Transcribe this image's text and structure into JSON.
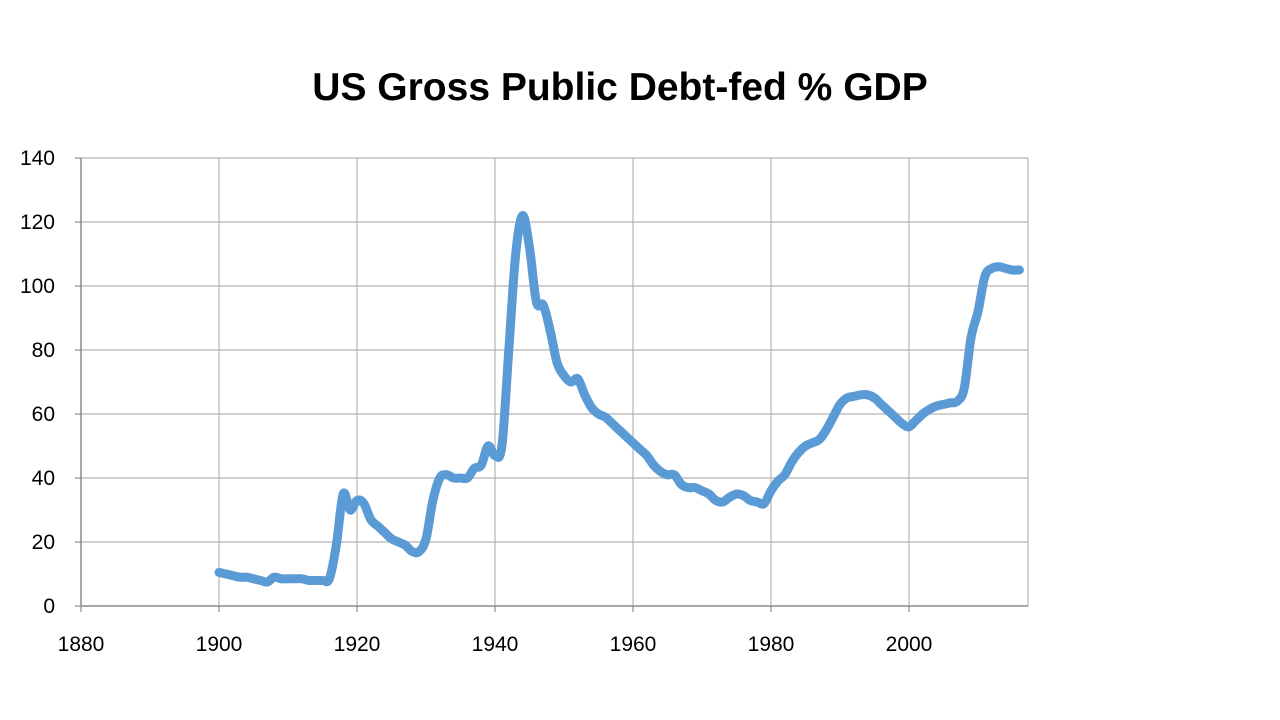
{
  "chart_data": {
    "type": "line",
    "title": "US Gross Public Debt-fed % GDP",
    "xlabel": "",
    "ylabel": "",
    "xlim": [
      1880,
      2017
    ],
    "ylim": [
      0,
      140
    ],
    "x_ticks": [
      1880,
      1900,
      1920,
      1940,
      1960,
      1980,
      2000
    ],
    "y_ticks": [
      0,
      20,
      40,
      60,
      80,
      100,
      120,
      140
    ],
    "grid": true,
    "legend": "none",
    "line_color": "#5B9BD5",
    "series": [
      {
        "x": [
          1900,
          1901,
          1902,
          1903,
          1904,
          1905,
          1906,
          1907,
          1908,
          1909,
          1910,
          1911,
          1912,
          1913,
          1914,
          1915,
          1916,
          1917,
          1918,
          1919,
          1920,
          1921,
          1922,
          1923,
          1924,
          1925,
          1926,
          1927,
          1928,
          1929,
          1930,
          1931,
          1932,
          1933,
          1934,
          1935,
          1936,
          1937,
          1938,
          1939,
          1940,
          1941,
          1942,
          1943,
          1944,
          1945,
          1946,
          1947,
          1948,
          1949,
          1950,
          1951,
          1952,
          1953,
          1954,
          1955,
          1956,
          1957,
          1958,
          1959,
          1960,
          1961,
          1962,
          1963,
          1964,
          1965,
          1966,
          1967,
          1968,
          1969,
          1970,
          1971,
          1972,
          1973,
          1974,
          1975,
          1976,
          1977,
          1978,
          1979,
          1980,
          1981,
          1982,
          1983,
          1984,
          1985,
          1986,
          1987,
          1988,
          1989,
          1990,
          1991,
          1992,
          1993,
          1994,
          1995,
          1996,
          1997,
          1998,
          1999,
          2000,
          2001,
          2002,
          2003,
          2004,
          2005,
          2006,
          2007,
          2008,
          2009,
          2010,
          2011,
          2012,
          2013,
          2014,
          2015,
          2016
        ],
        "y": [
          10.5,
          10,
          9.5,
          9,
          9,
          8.5,
          8,
          7.5,
          9,
          8.5,
          8.5,
          8.5,
          8.5,
          8,
          8,
          8,
          8.5,
          19,
          35,
          30,
          33,
          32,
          27,
          25,
          23,
          21,
          20,
          19,
          17,
          17,
          21,
          33,
          40,
          41,
          40,
          40,
          40,
          43,
          44,
          50,
          47,
          50,
          80,
          110,
          122,
          112,
          95,
          94,
          86,
          76,
          72,
          70,
          71,
          66,
          62,
          60,
          59,
          57,
          55,
          53,
          51,
          49,
          47,
          44,
          42,
          41,
          41,
          38,
          37,
          37,
          36,
          35,
          33,
          32.5,
          34,
          35,
          34.5,
          33,
          32.5,
          32,
          36,
          39,
          41,
          45,
          48,
          50,
          51,
          52,
          55,
          59,
          63,
          65,
          65.5,
          66,
          66,
          65,
          63,
          61,
          59,
          57,
          56,
          58,
          60,
          61.5,
          62.5,
          63,
          63.5,
          64,
          68,
          84,
          92,
          103,
          105.5,
          106,
          105.5,
          105,
          105
        ]
      }
    ]
  }
}
